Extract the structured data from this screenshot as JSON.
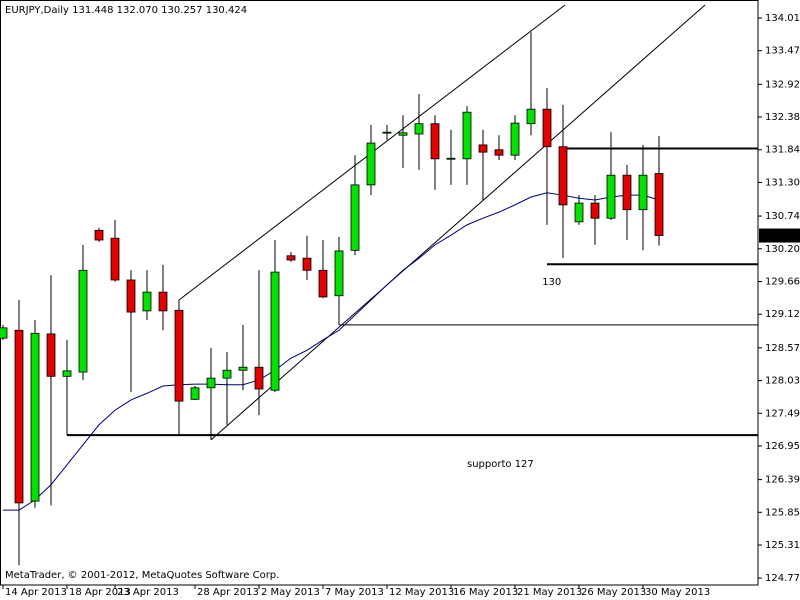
{
  "chart_data": {
    "type": "candlestick",
    "title": "EURJPY,Daily  131.448 132.070 130.257 130.424",
    "footer": "MetaTrader, © 2001-2012, MetaQuotes Software Corp.",
    "categories": [
      "14 Apr 2013",
      null,
      null,
      null,
      "18 Apr 2013",
      null,
      null,
      "23 Apr 2013",
      null,
      null,
      null,
      null,
      "28 Apr 2013",
      null,
      null,
      null,
      "2 May 2013",
      null,
      null,
      null,
      "7 May 2013",
      null,
      null,
      null,
      "12 May 2013",
      null,
      null,
      null,
      "16 May 2013",
      null,
      null,
      null,
      "21 May 2013",
      null,
      null,
      null,
      "26 May 2013",
      null,
      null,
      null,
      "30 May 2013",
      null
    ],
    "open": [
      128.73,
      128.86,
      126.04,
      128.8,
      128.1,
      128.17,
      130.51,
      130.38,
      129.69,
      129.18,
      129.49,
      129.19,
      127.72,
      127.91,
      128.07,
      128.2,
      128.25,
      127.87,
      130.09,
      130.05,
      129.85,
      129.43,
      130.18,
      131.26,
      132.12,
      132.08,
      132.1,
      132.27,
      131.69,
      131.69,
      131.92,
      131.84,
      131.75,
      132.27,
      132.51,
      131.89,
      130.65,
      130.96,
      130.71,
      131.42,
      130.85,
      131.448
    ],
    "high": [
      128.95,
      129.36,
      129.03,
      129.77,
      128.7,
      130.27,
      130.55,
      130.68,
      129.85,
      129.85,
      129.94,
      129.36,
      127.94,
      128.57,
      128.5,
      128.95,
      129.85,
      130.35,
      130.15,
      130.42,
      130.35,
      130.4,
      131.75,
      132.25,
      132.25,
      132.41,
      132.76,
      132.41,
      132.17,
      132.56,
      132.17,
      132.08,
      132.41,
      133.78,
      132.86,
      132.58,
      131.09,
      131.09,
      132.13,
      131.59,
      131.92,
      132.07
    ],
    "low": [
      128.7,
      124.98,
      125.93,
      125.97,
      127.13,
      128.04,
      130.32,
      129.66,
      127.84,
      129.03,
      128.86,
      127.13,
      127.71,
      127.05,
      127.3,
      127.87,
      127.46,
      127.84,
      129.99,
      129.69,
      129.39,
      128.95,
      130.1,
      131.09,
      132.0,
      131.54,
      131.51,
      131.18,
      131.26,
      131.26,
      131.01,
      131.67,
      131.67,
      132.08,
      130.6,
      130.05,
      130.6,
      130.27,
      130.68,
      130.35,
      130.18,
      130.257
    ],
    "close": [
      128.9,
      126.01,
      128.81,
      128.1,
      128.19,
      129.85,
      130.35,
      129.69,
      129.16,
      129.49,
      129.18,
      127.69,
      127.91,
      128.07,
      128.2,
      128.25,
      127.89,
      129.82,
      130.02,
      129.85,
      129.41,
      130.17,
      131.26,
      131.95,
      132.13,
      132.12,
      132.27,
      131.69,
      131.7,
      132.46,
      131.8,
      131.75,
      132.28,
      132.51,
      131.89,
      130.93,
      130.96,
      130.71,
      131.42,
      130.85,
      131.42,
      130.424
    ],
    "up_color": "#00e000",
    "down_color": "#e00000",
    "ma": {
      "color": "#000080",
      "values": [
        125.89,
        125.89,
        126.06,
        126.31,
        126.64,
        126.97,
        127.3,
        127.54,
        127.71,
        127.82,
        127.94,
        127.96,
        127.97,
        127.97,
        127.96,
        127.96,
        128.04,
        128.2,
        128.4,
        128.53,
        128.7,
        128.86,
        129.11,
        129.36,
        129.61,
        129.85,
        130.05,
        130.27,
        130.43,
        130.6,
        130.71,
        130.81,
        130.93,
        131.06,
        131.13,
        131.09,
        131.04,
        131.01,
        131.06,
        131.09,
        131.09,
        131.01
      ]
    },
    "horizontal_lines": [
      {
        "value": 131.86,
        "from": 35,
        "width": 2
      },
      {
        "value": 129.95,
        "from": 34,
        "width": 2
      },
      {
        "value": 128.95,
        "from": 21,
        "width": 1
      },
      {
        "value": 127.13,
        "from": 4,
        "width": 2
      }
    ],
    "trendlines": [
      {
        "x": [
          11,
          35.125
        ],
        "y": [
          129.36,
          134.23
        ]
      },
      {
        "x": [
          13,
          43.875
        ],
        "y": [
          127.05,
          134.23
        ]
      }
    ],
    "annotations": [
      {
        "text": "130",
        "x": 33.7,
        "y": 129.66
      },
      {
        "text": "supporto 127",
        "x": 29,
        "y": 126.65
      }
    ],
    "ylim": [
      124.655,
      134.312
    ],
    "yticks": [
      134.015,
      133.475,
      {
        "value": 132.92,
        "label": "132.920"
      },
      {
        "value": 132.38,
        "label": "132.380"
      },
      {
        "value": 131.84,
        "label": "131.840"
      },
      {
        "value": 131.3,
        "label": "131.300"
      },
      130.745,
      130.205,
      129.665,
      129.125,
      {
        "value": 128.57,
        "label": "128.570"
      },
      {
        "value": 128.03,
        "label": "128.030"
      },
      {
        "value": 127.49,
        "label": "127.490"
      },
      {
        "value": 126.95,
        "label": "126.950"
      },
      126.395,
      125.855,
      125.315,
      {
        "value": 124.77,
        "label": "124.770"
      }
    ]
  }
}
